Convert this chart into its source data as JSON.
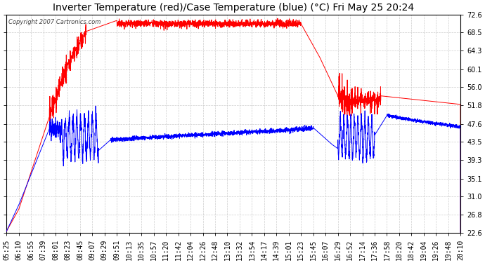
{
  "title": "Inverter Temperature (red)/Case Temperature (blue) (°C) Fri May 25 20:24",
  "copyright": "Copyright 2007 Cartronics.com",
  "yticks": [
    22.6,
    26.8,
    31.0,
    35.1,
    39.3,
    43.5,
    47.6,
    51.8,
    56.0,
    60.1,
    64.3,
    68.5,
    72.6
  ],
  "ylim": [
    22.6,
    72.6
  ],
  "xtick_labels": [
    "05:25",
    "06:10",
    "06:55",
    "07:39",
    "08:01",
    "08:23",
    "08:45",
    "09:07",
    "09:29",
    "09:51",
    "10:13",
    "10:35",
    "10:57",
    "11:20",
    "11:42",
    "12:04",
    "12:26",
    "12:48",
    "13:10",
    "13:32",
    "13:54",
    "14:17",
    "14:39",
    "15:01",
    "15:23",
    "15:45",
    "16:07",
    "16:29",
    "16:52",
    "17:14",
    "17:36",
    "17:58",
    "18:20",
    "18:42",
    "19:04",
    "19:26",
    "19:48",
    "20:10"
  ],
  "line_color_red": "#ff0000",
  "line_color_blue": "#0000ff",
  "bg_color": "#ffffff",
  "grid_color": "#cccccc",
  "title_fontsize": 10,
  "tick_fontsize": 7,
  "copyright_fontsize": 6
}
